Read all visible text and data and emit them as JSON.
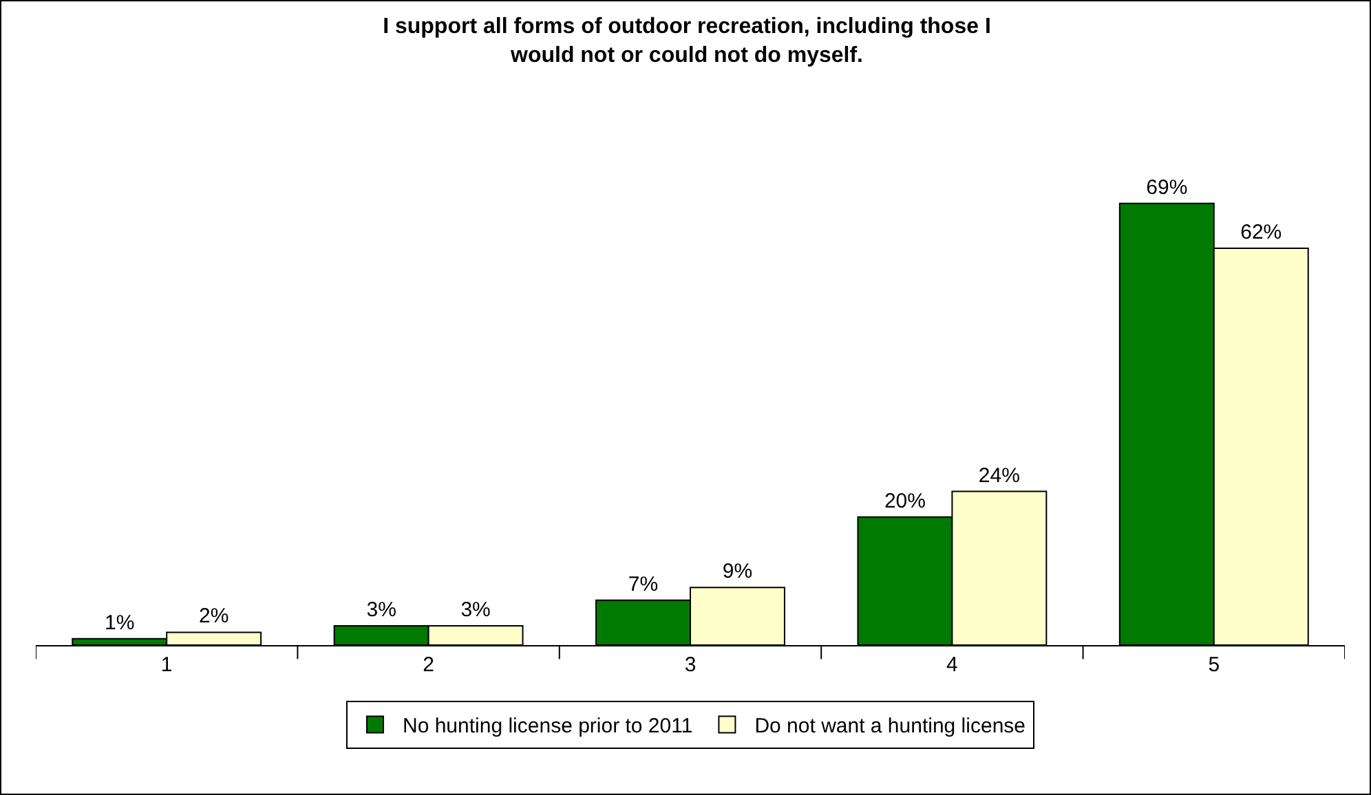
{
  "chart_data": {
    "type": "bar",
    "title": "I support all forms of outdoor recreation, including those I would not or could not do myself.",
    "categories": [
      "1",
      "2",
      "3",
      "4",
      "5"
    ],
    "series": [
      {
        "name": "No hunting license prior to 2011",
        "color": "#007a00",
        "values": [
          1,
          3,
          7,
          20,
          69
        ],
        "value_labels": [
          "1%",
          "3%",
          "7%",
          "20%",
          "69%"
        ]
      },
      {
        "name": "Do not want a hunting license",
        "color": "#ffffcc",
        "values": [
          2,
          3,
          9,
          24,
          62
        ],
        "value_labels": [
          "2%",
          "3%",
          "9%",
          "24%",
          "62%"
        ]
      }
    ],
    "grid": false,
    "legend": "bottom"
  }
}
